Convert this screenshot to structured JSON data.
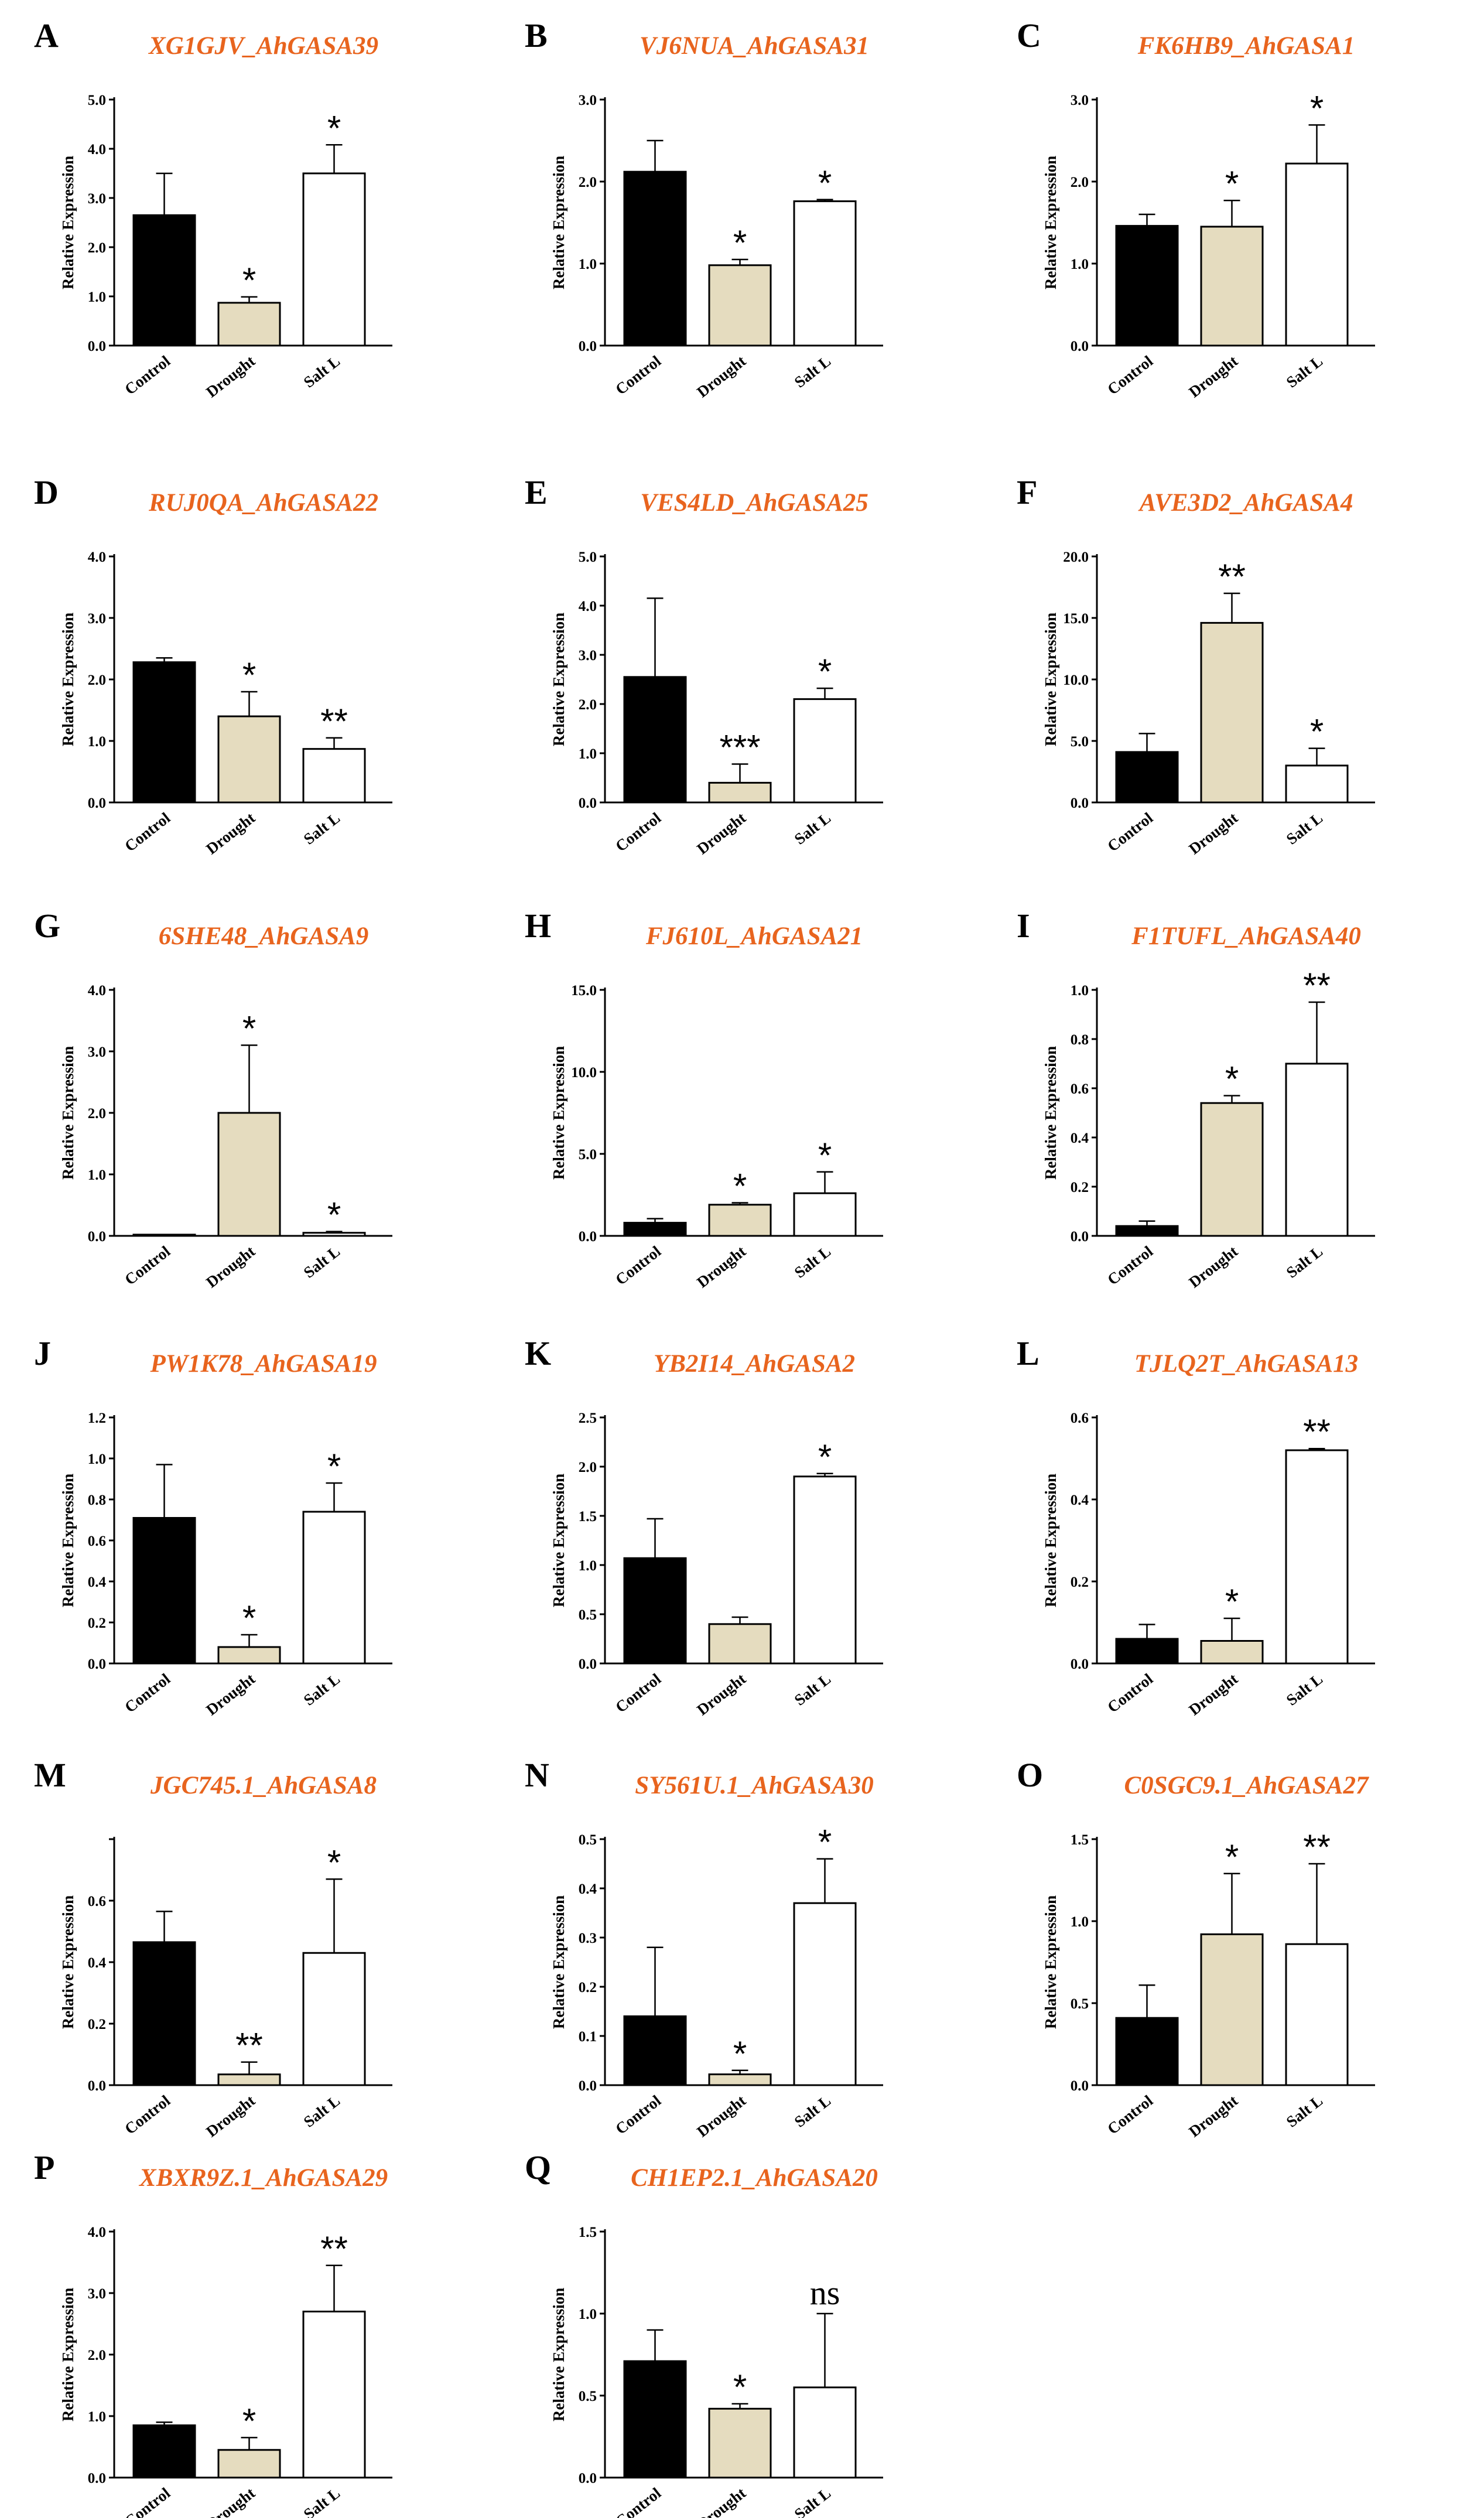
{
  "figure": {
    "ylabel": "Relative Expression"
  },
  "colors": {
    "Control": "#000000",
    "Drought": "#e5dcbf",
    "Salt L": "#ffffff",
    "title": "#e8641e"
  },
  "chart_data": [
    {
      "type": "bar",
      "letter": "A",
      "title": "XG1GJV_AhGASA39",
      "ylabel": "Relative Expression",
      "categories": [
        "Control",
        "Drought",
        "Salt L"
      ],
      "values": [
        2.65,
        0.87,
        3.5
      ],
      "errors": [
        0.85,
        0.12,
        0.58
      ],
      "significance": [
        "",
        "*",
        "*"
      ],
      "ylim": [
        0,
        5.0
      ],
      "yticks": [
        "0.0",
        "1.0",
        "2.0",
        "3.0",
        "4.0",
        "5.0"
      ]
    },
    {
      "type": "bar",
      "letter": "B",
      "title": "VJ6NUA_AhGASA31",
      "ylabel": "Relative Expression",
      "categories": [
        "Control",
        "Drought",
        "Salt L"
      ],
      "values": [
        2.12,
        0.98,
        1.76
      ],
      "errors": [
        0.38,
        0.07,
        0.02
      ],
      "significance": [
        "",
        "*",
        "*"
      ],
      "ylim": [
        0,
        3.0
      ],
      "yticks": [
        "0.0",
        "1.0",
        "2.0",
        "3.0"
      ]
    },
    {
      "type": "bar",
      "letter": "C",
      "title": "FK6HB9_AhGASA1",
      "ylabel": "Relative Expression",
      "categories": [
        "Control",
        "Drought",
        "Salt L"
      ],
      "values": [
        1.46,
        1.45,
        2.22
      ],
      "errors": [
        0.14,
        0.32,
        0.47
      ],
      "significance": [
        "",
        "*",
        "*"
      ],
      "ylim": [
        0,
        3.0
      ],
      "yticks": [
        "0.0",
        "1.0",
        "2.0",
        "3.0"
      ]
    },
    {
      "type": "bar",
      "letter": "D",
      "title": "RUJ0QA_AhGASA22",
      "ylabel": "Relative Expression",
      "categories": [
        "Control",
        "Drought",
        "Salt L"
      ],
      "values": [
        2.28,
        1.4,
        0.87
      ],
      "errors": [
        0.07,
        0.4,
        0.18
      ],
      "significance": [
        "",
        "*",
        "**"
      ],
      "ylim": [
        0,
        4.0
      ],
      "yticks": [
        "0.0",
        "1.0",
        "2.0",
        "3.0",
        "4.0"
      ]
    },
    {
      "type": "bar",
      "letter": "E",
      "title": "VES4LD_AhGASA25",
      "ylabel": "Relative Expression",
      "categories": [
        "Control",
        "Drought",
        "Salt L"
      ],
      "values": [
        2.55,
        0.4,
        2.1
      ],
      "errors": [
        1.6,
        0.38,
        0.22
      ],
      "significance": [
        "",
        "***",
        "*"
      ],
      "ylim": [
        0,
        5.0
      ],
      "yticks": [
        "0.0",
        "1.0",
        "2.0",
        "3.0",
        "4.0",
        "5.0"
      ]
    },
    {
      "type": "bar",
      "letter": "F",
      "title": "AVE3D2_AhGASA4",
      "ylabel": "Relative Expression",
      "categories": [
        "Control",
        "Drought",
        "Salt L"
      ],
      "values": [
        4.1,
        14.6,
        3.0
      ],
      "errors": [
        1.5,
        2.4,
        1.4
      ],
      "significance": [
        "",
        "**",
        "*"
      ],
      "ylim": [
        0,
        20.0
      ],
      "yticks": [
        "0.0",
        "5.0",
        "10.0",
        "15.0",
        "20.0"
      ]
    },
    {
      "type": "bar",
      "letter": "G",
      "title": "6SHE48_AhGASA9",
      "ylabel": "Relative Expression",
      "categories": [
        "Control",
        "Drought",
        "Salt L"
      ],
      "values": [
        0.02,
        2.0,
        0.05
      ],
      "errors": [
        0.0,
        1.1,
        0.02
      ],
      "significance": [
        "",
        "*",
        "*"
      ],
      "ylim": [
        0,
        4.0
      ],
      "yticks": [
        "0.0",
        "1.0",
        "2.0",
        "3.0",
        "4.0"
      ]
    },
    {
      "type": "bar",
      "letter": "H",
      "title": "FJ610L_AhGASA21",
      "ylabel": "Relative Expression",
      "categories": [
        "Control",
        "Drought",
        "Salt L"
      ],
      "values": [
        0.8,
        1.9,
        2.6
      ],
      "errors": [
        0.25,
        0.12,
        1.3
      ],
      "significance": [
        "",
        "*",
        "*"
      ],
      "ylim": [
        0,
        15.0
      ],
      "yticks": [
        "0.0",
        "5.0",
        "10.0",
        "15.0"
      ]
    },
    {
      "type": "bar",
      "letter": "I",
      "title": "F1TUFL_AhGASA40",
      "ylabel": "Relative Expression",
      "categories": [
        "Control",
        "Drought",
        "Salt L"
      ],
      "values": [
        0.04,
        0.54,
        0.7
      ],
      "errors": [
        0.02,
        0.03,
        0.25
      ],
      "significance": [
        "",
        "*",
        "**"
      ],
      "ylim": [
        0,
        1.0
      ],
      "yticks": [
        "0.0",
        "0.2",
        "0.4",
        "0.6",
        "0.8",
        "1.0"
      ]
    },
    {
      "type": "bar",
      "letter": "J",
      "title": "PW1K78_AhGASA19",
      "ylabel": "Relative Expression",
      "categories": [
        "Control",
        "Drought",
        "Salt L"
      ],
      "values": [
        0.71,
        0.08,
        0.74
      ],
      "errors": [
        0.26,
        0.06,
        0.14
      ],
      "significance": [
        "",
        "*",
        "*"
      ],
      "ylim": [
        0,
        1.2
      ],
      "yticks": [
        "0.0",
        "0.2",
        "0.4",
        "0.6",
        "0.8",
        "1.0",
        "1.2"
      ]
    },
    {
      "type": "bar",
      "letter": "K",
      "title": "YB2I14_AhGASA2",
      "ylabel": "Relative Expression",
      "categories": [
        "Control",
        "Drought",
        "Salt L"
      ],
      "values": [
        1.07,
        0.4,
        1.9
      ],
      "errors": [
        0.4,
        0.07,
        0.03
      ],
      "significance": [
        "",
        "",
        "*"
      ],
      "ylim": [
        0,
        2.5
      ],
      "yticks": [
        "0.0",
        "0.5",
        "1.0",
        "1.5",
        "2.0",
        "2.5"
      ]
    },
    {
      "type": "bar",
      "letter": "L",
      "title": "TJLQ2T_AhGASA13",
      "ylabel": "Relative Expression",
      "categories": [
        "Control",
        "Drought",
        "Salt L"
      ],
      "values": [
        0.06,
        0.055,
        0.52
      ],
      "errors": [
        0.035,
        0.055,
        0.004
      ],
      "significance": [
        "",
        "*",
        "**"
      ],
      "ylim": [
        0,
        0.6
      ],
      "yticks": [
        "0.0",
        "0.2",
        "0.4",
        "0.6"
      ]
    },
    {
      "type": "bar",
      "letter": "M",
      "title": "JGC745.1_AhGASA8",
      "ylabel": "Relative Expression",
      "categories": [
        "Control",
        "Drought",
        "Salt L"
      ],
      "values": [
        0.465,
        0.035,
        0.43
      ],
      "errors": [
        0.1,
        0.04,
        0.24
      ],
      "significance": [
        "",
        "**",
        "*"
      ],
      "ylim": [
        0,
        0.8
      ],
      "yticks": [
        "0.0",
        "0.2",
        "0.4",
        "0.6",
        ""
      ]
    },
    {
      "type": "bar",
      "letter": "N",
      "title": "SY561U.1_AhGASA30",
      "ylabel": "Relative Expression",
      "categories": [
        "Control",
        "Drought",
        "Salt L"
      ],
      "values": [
        0.14,
        0.022,
        0.37
      ],
      "errors": [
        0.14,
        0.008,
        0.09
      ],
      "significance": [
        "",
        "*",
        "*"
      ],
      "ylim": [
        0,
        0.5
      ],
      "yticks": [
        "0.0",
        "0.1",
        "0.2",
        "0.3",
        "0.4",
        "0.5"
      ]
    },
    {
      "type": "bar",
      "letter": "O",
      "title": "C0SGC9.1_AhGASA27",
      "ylabel": "Relative Expression",
      "categories": [
        "Control",
        "Drought",
        "Salt L"
      ],
      "values": [
        0.41,
        0.92,
        0.86
      ],
      "errors": [
        0.2,
        0.37,
        0.49
      ],
      "significance": [
        "",
        "*",
        "**"
      ],
      "ylim": [
        0,
        1.5
      ],
      "yticks": [
        "0.0",
        "0.5",
        "1.0",
        "1.5"
      ]
    },
    {
      "type": "bar",
      "letter": "P",
      "title": "XBXR9Z.1_AhGASA29",
      "ylabel": "Relative Expression",
      "categories": [
        "Control",
        "Drought",
        "Salt L"
      ],
      "values": [
        0.85,
        0.45,
        2.7
      ],
      "errors": [
        0.05,
        0.2,
        0.75
      ],
      "significance": [
        "",
        "*",
        "**"
      ],
      "ylim": [
        0,
        4.0
      ],
      "yticks": [
        "0.0",
        "1.0",
        "2.0",
        "3.0",
        "4.0"
      ]
    },
    {
      "type": "bar",
      "letter": "Q",
      "title": "CH1EP2.1_AhGASA20",
      "ylabel": "Relative Expression",
      "categories": [
        "Control",
        "Drought",
        "Salt L"
      ],
      "values": [
        0.71,
        0.42,
        0.55
      ],
      "errors": [
        0.19,
        0.03,
        0.45
      ],
      "significance": [
        "",
        "*",
        "ns"
      ],
      "ylim": [
        0,
        1.5
      ],
      "yticks": [
        "0.0",
        "0.5",
        "1.0",
        "1.5"
      ]
    }
  ]
}
